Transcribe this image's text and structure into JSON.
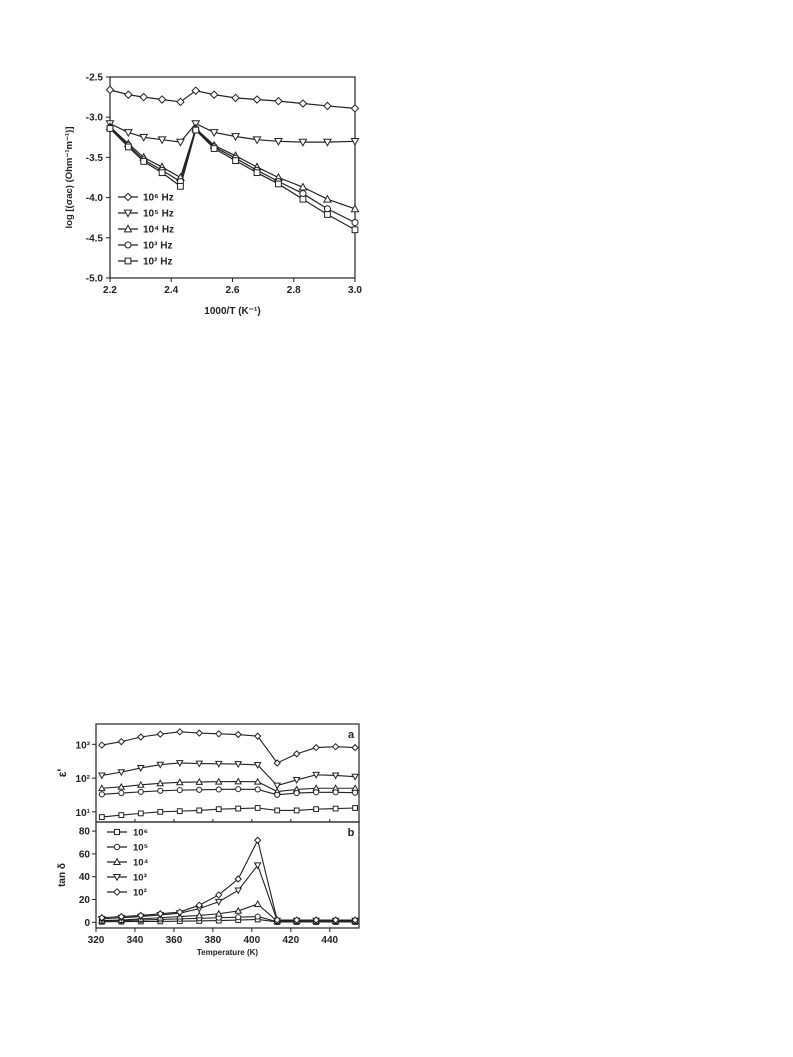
{
  "chart_data": [
    {
      "type": "line",
      "title": "",
      "xlabel": "1000/T (K⁻¹)",
      "ylabel": "log [(σac) (Ohm⁻¹m⁻¹)]",
      "xlim": [
        2.2,
        3.0
      ],
      "ylim": [
        -5.0,
        -2.5
      ],
      "x_ticks": [
        "2.2",
        "2.4",
        "2.6",
        "2.8",
        "3.0"
      ],
      "y_ticks": [
        "-2.5",
        "-3.0",
        "-3.5",
        "-4.0",
        "-4.5",
        "-5.0"
      ],
      "legend_position": "lower-left",
      "x": [
        2.2,
        2.26,
        2.31,
        2.37,
        2.43,
        2.48,
        2.54,
        2.61,
        2.68,
        2.75,
        2.83,
        2.91,
        3.0
      ],
      "series": [
        {
          "name": "10⁶ Hz",
          "marker": "diamond",
          "values": [
            -2.66,
            -2.72,
            -2.75,
            -2.78,
            -2.81,
            -2.67,
            -2.72,
            -2.76,
            -2.78,
            -2.8,
            -2.83,
            -2.86,
            -2.89
          ]
        },
        {
          "name": "10⁵ Hz",
          "marker": "triangle-down",
          "values": [
            -3.08,
            -3.19,
            -3.25,
            -3.28,
            -3.31,
            -3.08,
            -3.19,
            -3.24,
            -3.28,
            -3.3,
            -3.31,
            -3.31,
            -3.3
          ]
        },
        {
          "name": "10⁴ Hz",
          "marker": "triangle-up",
          "values": [
            -3.12,
            -3.33,
            -3.5,
            -3.62,
            -3.75,
            -3.14,
            -3.35,
            -3.48,
            -3.62,
            -3.75,
            -3.87,
            -4.02,
            -4.14
          ]
        },
        {
          "name": "10³ Hz",
          "marker": "circle",
          "values": [
            -3.13,
            -3.35,
            -3.53,
            -3.66,
            -3.8,
            -3.15,
            -3.37,
            -3.51,
            -3.66,
            -3.8,
            -3.95,
            -4.14,
            -4.31
          ]
        },
        {
          "name": "10² Hz",
          "marker": "square",
          "values": [
            -3.14,
            -3.37,
            -3.55,
            -3.69,
            -3.86,
            -3.16,
            -3.39,
            -3.54,
            -3.69,
            -3.83,
            -4.02,
            -4.21,
            -4.4
          ]
        }
      ]
    },
    {
      "type": "line",
      "panel_label": "a",
      "xlabel": "",
      "ylabel": "ε'",
      "y_scale": "log",
      "xlim": [
        320,
        455
      ],
      "ylim": [
        5,
        4000
      ],
      "y_ticks": [
        "10¹",
        "10²",
        "10³"
      ],
      "x": [
        323,
        333,
        343,
        353,
        363,
        373,
        383,
        393,
        403,
        413,
        423,
        433,
        443,
        453
      ],
      "series": [
        {
          "marker": "diamond",
          "values": [
            950,
            1200,
            1650,
            2000,
            2350,
            2150,
            2050,
            1950,
            1750,
            280,
            520,
            800,
            850,
            800
          ]
        },
        {
          "marker": "triangle-down",
          "values": [
            120,
            150,
            200,
            250,
            280,
            270,
            265,
            260,
            245,
            60,
            88,
            125,
            120,
            110
          ]
        },
        {
          "marker": "triangle-up",
          "values": [
            50,
            55,
            63,
            70,
            75,
            77,
            78,
            79,
            78,
            40,
            46,
            50,
            50,
            50
          ]
        },
        {
          "marker": "circle",
          "values": [
            33,
            36,
            39,
            42,
            44,
            45,
            46,
            47,
            46,
            32,
            36,
            38,
            38,
            37
          ]
        },
        {
          "marker": "square",
          "values": [
            7,
            8,
            9,
            10,
            10.5,
            11,
            12,
            12.5,
            13,
            11,
            11,
            12,
            12.5,
            13
          ]
        }
      ]
    },
    {
      "type": "line",
      "panel_label": "b",
      "xlabel": "Temperature (K)",
      "ylabel": "tan δ",
      "xlim": [
        320,
        455
      ],
      "ylim": [
        -5,
        88
      ],
      "x_ticks": [
        "320",
        "340",
        "360",
        "380",
        "400",
        "420",
        "440"
      ],
      "y_ticks": [
        "0",
        "20",
        "40",
        "60",
        "80"
      ],
      "legend_position": "upper-left",
      "x": [
        323,
        333,
        343,
        353,
        363,
        373,
        383,
        393,
        403,
        413,
        423,
        433,
        443,
        453
      ],
      "series": [
        {
          "name": "10⁶",
          "marker": "square",
          "values": [
            0.5,
            0.6,
            0.7,
            0.8,
            1,
            1.2,
            1.5,
            2,
            2.5,
            0.3,
            0.3,
            0.3,
            0.3,
            0.3
          ]
        },
        {
          "name": "10⁵",
          "marker": "circle",
          "values": [
            1,
            1.5,
            2,
            2.5,
            3,
            3.5,
            4,
            4.5,
            5,
            0.5,
            0.5,
            0.5,
            0.5,
            0.5
          ]
        },
        {
          "name": "10⁴",
          "marker": "triangle-up",
          "values": [
            1.5,
            2,
            3,
            4,
            5,
            6,
            7.5,
            10,
            16,
            1,
            1,
            1,
            1,
            1
          ]
        },
        {
          "name": "10³",
          "marker": "triangle-down",
          "values": [
            3,
            4,
            5,
            6.5,
            8,
            12,
            18,
            28,
            50,
            1.5,
            1.5,
            1.5,
            1.5,
            1.5
          ]
        },
        {
          "name": "10²",
          "marker": "diamond",
          "values": [
            4,
            5,
            6,
            7.5,
            9,
            15,
            24,
            38,
            72,
            2,
            2,
            2,
            2,
            2
          ]
        }
      ]
    }
  ]
}
